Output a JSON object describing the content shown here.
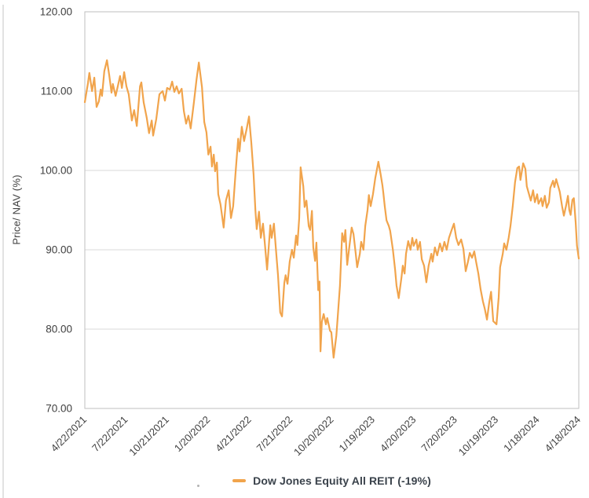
{
  "page": {
    "background": "#FFFFFF"
  },
  "legend": {
    "label": "Dow Jones Equity All REIT (-19%)"
  },
  "colors": {
    "line": "#F1A44C",
    "grid": "#D9D9D9",
    "plot_border": "#BFBFBF",
    "tick_text": "#404040",
    "legend_text": "#3A424B"
  },
  "chart_data": {
    "type": "line",
    "title": "",
    "xlabel": "",
    "ylabel": "Price/ NAV (%)",
    "ylim": [
      70,
      120
    ],
    "grid": "horizontal",
    "legend_position": "bottom",
    "y_tick_labels": [
      "120.00",
      "110.00",
      "100.00",
      "90.00",
      "80.00",
      "70.00"
    ],
    "x_tick_labels": [
      "4/22/2021",
      "7/22/2021",
      "10/21/2021",
      "1/20/2022",
      "4/21/2022",
      "7/21/2022",
      "10/20/2022",
      "1/19/2023",
      "4/20/2023",
      "7/20/2023",
      "10/19/2023",
      "1/18/2024",
      "4/18/2024"
    ],
    "series": [
      {
        "name": "Dow Jones Equity All REIT (-19%)",
        "color": "#F1A44C",
        "points": [
          [
            "4/22/2021",
            108.6
          ],
          [
            "4/29/2021",
            111.0
          ],
          [
            "5/2/2021",
            112.3
          ],
          [
            "5/8/2021",
            110.0
          ],
          [
            "5/13/2021",
            111.7
          ],
          [
            "5/18/2021",
            108.0
          ],
          [
            "5/23/2021",
            108.7
          ],
          [
            "5/27/2021",
            110.2
          ],
          [
            "5/30/2021",
            109.4
          ],
          [
            "6/4/2021",
            112.5
          ],
          [
            "6/10/2021",
            113.9
          ],
          [
            "6/15/2021",
            112.0
          ],
          [
            "6/20/2021",
            109.8
          ],
          [
            "6/23/2021",
            110.9
          ],
          [
            "6/29/2021",
            109.4
          ],
          [
            "7/4/2021",
            110.6
          ],
          [
            "7/9/2021",
            111.9
          ],
          [
            "7/13/2021",
            110.4
          ],
          [
            "7/18/2021",
            112.4
          ],
          [
            "7/23/2021",
            110.6
          ],
          [
            "7/28/2021",
            109.6
          ],
          [
            "8/4/2021",
            106.3
          ],
          [
            "8/9/2021",
            107.6
          ],
          [
            "8/15/2021",
            105.6
          ],
          [
            "8/22/2021",
            110.6
          ],
          [
            "8/25/2021",
            111.1
          ],
          [
            "8/30/2021",
            108.6
          ],
          [
            "9/6/2021",
            106.6
          ],
          [
            "9/11/2021",
            104.7
          ],
          [
            "9/17/2021",
            106.3
          ],
          [
            "9/20/2021",
            104.4
          ],
          [
            "9/27/2021",
            106.5
          ],
          [
            "10/4/2021",
            109.6
          ],
          [
            "10/11/2021",
            110.0
          ],
          [
            "10/16/2021",
            108.8
          ],
          [
            "10/21/2021",
            110.4
          ],
          [
            "10/27/2021",
            110.2
          ],
          [
            "11/1/2021",
            111.2
          ],
          [
            "11/6/2021",
            109.9
          ],
          [
            "11/11/2021",
            110.6
          ],
          [
            "11/16/2021",
            109.7
          ],
          [
            "11/22/2021",
            110.3
          ],
          [
            "11/27/2021",
            107.5
          ],
          [
            "12/2/2021",
            105.9
          ],
          [
            "12/7/2021",
            106.9
          ],
          [
            "12/12/2021",
            105.3
          ],
          [
            "12/19/2021",
            108.5
          ],
          [
            "12/25/2021",
            111.5
          ],
          [
            "12/30/2021",
            113.6
          ],
          [
            "1/6/2022",
            110.5
          ],
          [
            "1/11/2022",
            106.1
          ],
          [
            "1/16/2022",
            104.8
          ],
          [
            "1/20/2022",
            102.0
          ],
          [
            "1/25/2022",
            103.0
          ],
          [
            "1/28/2022",
            100.5
          ],
          [
            "2/1/2022",
            102.0
          ],
          [
            "2/4/2022",
            99.9
          ],
          [
            "2/8/2022",
            101.0
          ],
          [
            "2/11/2022",
            97.0
          ],
          [
            "2/16/2022",
            95.7
          ],
          [
            "2/23/2022",
            92.8
          ],
          [
            "2/28/2022",
            96.2
          ],
          [
            "3/6/2022",
            97.5
          ],
          [
            "3/11/2022",
            94.0
          ],
          [
            "3/16/2022",
            95.5
          ],
          [
            "3/21/2022",
            99.5
          ],
          [
            "3/27/2022",
            104.0
          ],
          [
            "3/30/2022",
            102.4
          ],
          [
            "4/4/2022",
            105.5
          ],
          [
            "4/9/2022",
            103.7
          ],
          [
            "4/15/2022",
            105.3
          ],
          [
            "4/20/2022",
            106.8
          ],
          [
            "4/25/2022",
            103.5
          ],
          [
            "4/30/2022",
            99.5
          ],
          [
            "5/4/2022",
            95.0
          ],
          [
            "5/7/2022",
            92.6
          ],
          [
            "5/12/2022",
            94.8
          ],
          [
            "5/16/2022",
            91.5
          ],
          [
            "5/21/2022",
            93.3
          ],
          [
            "5/25/2022",
            90.7
          ],
          [
            "5/30/2022",
            87.5
          ],
          [
            "6/6/2022",
            93.1
          ],
          [
            "6/9/2022",
            91.5
          ],
          [
            "6/14/2022",
            93.3
          ],
          [
            "6/20/2022",
            89.0
          ],
          [
            "6/23/2022",
            86.8
          ],
          [
            "6/28/2022",
            82.1
          ],
          [
            "7/2/2022",
            81.6
          ],
          [
            "7/7/2022",
            85.8
          ],
          [
            "7/10/2022",
            86.8
          ],
          [
            "7/14/2022",
            85.7
          ],
          [
            "7/19/2022",
            88.5
          ],
          [
            "7/24/2022",
            90.0
          ],
          [
            "7/28/2022",
            89.0
          ],
          [
            "8/2/2022",
            91.8
          ],
          [
            "8/5/2022",
            90.6
          ],
          [
            "8/9/2022",
            94.0
          ],
          [
            "8/12/2022",
            100.4
          ],
          [
            "8/18/2022",
            98.0
          ],
          [
            "8/21/2022",
            95.4
          ],
          [
            "8/25/2022",
            96.2
          ],
          [
            "8/30/2022",
            93.0
          ],
          [
            "9/2/2022",
            92.5
          ],
          [
            "9/6/2022",
            94.9
          ],
          [
            "9/9/2022",
            90.3
          ],
          [
            "9/13/2022",
            88.6
          ],
          [
            "9/16/2022",
            90.9
          ],
          [
            "9/20/2022",
            84.9
          ],
          [
            "9/23/2022",
            86.0
          ],
          [
            "9/25/2022",
            77.2
          ],
          [
            "9/28/2022",
            80.9
          ],
          [
            "10/2/2022",
            81.9
          ],
          [
            "10/7/2022",
            80.6
          ],
          [
            "10/10/2022",
            81.4
          ],
          [
            "10/16/2022",
            79.8
          ],
          [
            "10/19/2022",
            79.6
          ],
          [
            "10/24/2022",
            76.4
          ],
          [
            "10/30/2022",
            79.2
          ],
          [
            "11/2/2022",
            81.5
          ],
          [
            "11/7/2022",
            85.5
          ],
          [
            "11/12/2022",
            92.1
          ],
          [
            "11/16/2022",
            91.0
          ],
          [
            "11/19/2022",
            92.5
          ],
          [
            "11/23/2022",
            88.1
          ],
          [
            "11/28/2022",
            90.5
          ],
          [
            "12/3/2022",
            92.8
          ],
          [
            "12/7/2022",
            92.0
          ],
          [
            "12/12/2022",
            89.5
          ],
          [
            "12/15/2022",
            87.8
          ],
          [
            "12/21/2022",
            89.5
          ],
          [
            "12/24/2022",
            91.0
          ],
          [
            "12/29/2022",
            90.0
          ],
          [
            "1/2/2023",
            93.0
          ],
          [
            "1/7/2023",
            95.0
          ],
          [
            "1/10/2023",
            96.9
          ],
          [
            "1/14/2023",
            95.5
          ],
          [
            "1/19/2023",
            97.0
          ],
          [
            "1/24/2023",
            99.0
          ],
          [
            "1/31/2023",
            101.1
          ],
          [
            "2/5/2023",
            99.5
          ],
          [
            "2/9/2023",
            98.1
          ],
          [
            "2/11/2023",
            97.1
          ],
          [
            "2/14/2023",
            95.5
          ],
          [
            "2/18/2023",
            93.7
          ],
          [
            "2/23/2023",
            93.0
          ],
          [
            "2/26/2023",
            92.4
          ],
          [
            "3/4/2023",
            90.0
          ],
          [
            "3/9/2023",
            87.5
          ],
          [
            "3/12/2023",
            85.5
          ],
          [
            "3/17/2023",
            83.9
          ],
          [
            "3/23/2023",
            86.5
          ],
          [
            "3/26/2023",
            88.0
          ],
          [
            "3/30/2023",
            87.0
          ],
          [
            "4/2/2023",
            89.5
          ],
          [
            "4/7/2023",
            91.1
          ],
          [
            "4/12/2023",
            90.0
          ],
          [
            "4/16/2023",
            91.5
          ],
          [
            "4/19/2023",
            90.5
          ],
          [
            "4/25/2023",
            91.3
          ],
          [
            "4/28/2023",
            90.0
          ],
          [
            "5/3/2023",
            91.0
          ],
          [
            "5/7/2023",
            88.8
          ],
          [
            "5/12/2023",
            88.0
          ],
          [
            "5/17/2023",
            85.9
          ],
          [
            "5/22/2023",
            88.0
          ],
          [
            "5/28/2023",
            89.5
          ],
          [
            "5/31/2023",
            88.5
          ],
          [
            "6/5/2023",
            90.3
          ],
          [
            "6/10/2023",
            89.3
          ],
          [
            "6/16/2023",
            90.8
          ],
          [
            "6/21/2023",
            89.8
          ],
          [
            "6/26/2023",
            91.0
          ],
          [
            "7/1/2023",
            90.0
          ],
          [
            "7/6/2023",
            91.5
          ],
          [
            "7/12/2023",
            92.5
          ],
          [
            "7/17/2023",
            93.3
          ],
          [
            "7/22/2023",
            91.5
          ],
          [
            "7/27/2023",
            90.6
          ],
          [
            "8/2/2023",
            91.3
          ],
          [
            "8/7/2023",
            90.1
          ],
          [
            "8/12/2023",
            87.3
          ],
          [
            "8/17/2023",
            88.5
          ],
          [
            "8/21/2023",
            89.6
          ],
          [
            "8/26/2023",
            89.0
          ],
          [
            "8/31/2023",
            89.8
          ],
          [
            "9/4/2023",
            88.5
          ],
          [
            "9/9/2023",
            87.0
          ],
          [
            "9/14/2023",
            85.0
          ],
          [
            "9/19/2023",
            83.5
          ],
          [
            "9/23/2023",
            82.6
          ],
          [
            "9/28/2023",
            81.2
          ],
          [
            "10/3/2023",
            83.4
          ],
          [
            "10/7/2023",
            84.7
          ],
          [
            "10/12/2023",
            81.0
          ],
          [
            "10/19/2023",
            80.6
          ],
          [
            "10/24/2023",
            84.0
          ],
          [
            "10/27/2023",
            87.8
          ],
          [
            "11/2/2023",
            89.5
          ],
          [
            "11/5/2023",
            90.8
          ],
          [
            "11/10/2023",
            90.0
          ],
          [
            "11/15/2023",
            91.5
          ],
          [
            "11/19/2023",
            93.0
          ],
          [
            "11/24/2023",
            95.5
          ],
          [
            "11/29/2023",
            98.5
          ],
          [
            "12/4/2023",
            100.3
          ],
          [
            "12/8/2023",
            100.5
          ],
          [
            "12/11/2023",
            98.8
          ],
          [
            "12/17/2023",
            100.9
          ],
          [
            "12/22/2023",
            100.2
          ],
          [
            "12/25/2023",
            98.0
          ],
          [
            "12/31/2023",
            96.8
          ],
          [
            "1/3/2024",
            96.2
          ],
          [
            "1/8/2024",
            97.5
          ],
          [
            "1/12/2024",
            96.0
          ],
          [
            "1/17/2024",
            97.0
          ],
          [
            "1/20/2024",
            95.8
          ],
          [
            "1/26/2024",
            96.5
          ],
          [
            "1/29/2024",
            95.5
          ],
          [
            "2/3/2024",
            96.8
          ],
          [
            "2/7/2024",
            95.3
          ],
          [
            "2/12/2024",
            96.0
          ],
          [
            "2/15/2024",
            97.8
          ],
          [
            "2/21/2024",
            98.7
          ],
          [
            "2/24/2024",
            97.9
          ],
          [
            "2/28/2024",
            98.9
          ],
          [
            "3/4/2024",
            97.9
          ],
          [
            "3/7/2024",
            97.3
          ],
          [
            "3/12/2024",
            95.5
          ],
          [
            "3/16/2024",
            94.3
          ],
          [
            "3/21/2024",
            95.6
          ],
          [
            "3/25/2024",
            96.8
          ],
          [
            "3/28/2024",
            95.0
          ],
          [
            "3/31/2024",
            94.4
          ],
          [
            "4/4/2024",
            96.3
          ],
          [
            "4/7/2024",
            96.5
          ],
          [
            "4/11/2024",
            93.5
          ],
          [
            "4/14/2024",
            90.5
          ],
          [
            "4/18/2024",
            88.9
          ]
        ]
      }
    ]
  }
}
